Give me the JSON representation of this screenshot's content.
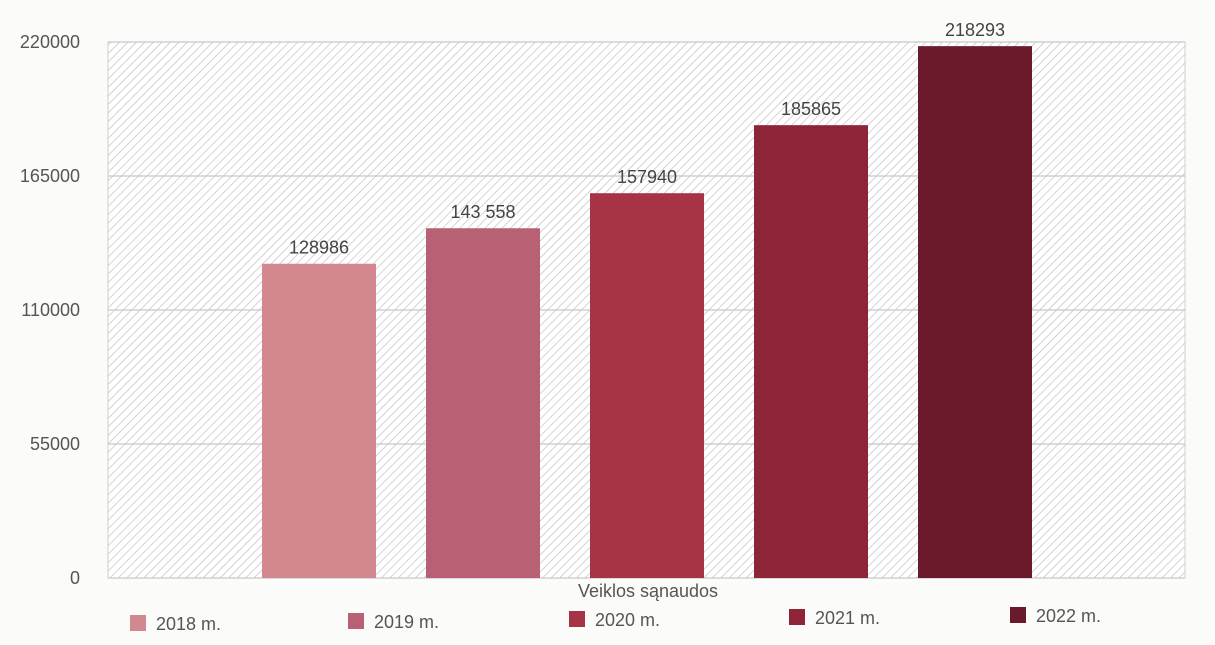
{
  "chart_data": {
    "type": "bar",
    "categories": [
      "Veiklos sąnaudos"
    ],
    "series": [
      {
        "name": "2018 m.",
        "values": [
          128986
        ],
        "label": "128986",
        "color": "#d3888f"
      },
      {
        "name": "2019 m.",
        "values": [
          143558
        ],
        "label": "143 558",
        "color": "#b86074"
      },
      {
        "name": "2020 m.",
        "values": [
          157940
        ],
        "label": "157940",
        "color": "#a73445"
      },
      {
        "name": "2021 m.",
        "values": [
          185865
        ],
        "label": "185865",
        "color": "#8d2437"
      },
      {
        "name": "2022 m.",
        "values": [
          218293
        ],
        "label": "218293",
        "color": "#6b1a2b"
      }
    ],
    "yticks": [
      "0",
      "55000",
      "110000",
      "165000",
      "220000"
    ],
    "ylim": [
      0,
      220000
    ],
    "xlabel": "",
    "ylabel": "",
    "title": "",
    "grid": true,
    "legend_position": "bottom",
    "background": "hatched"
  }
}
